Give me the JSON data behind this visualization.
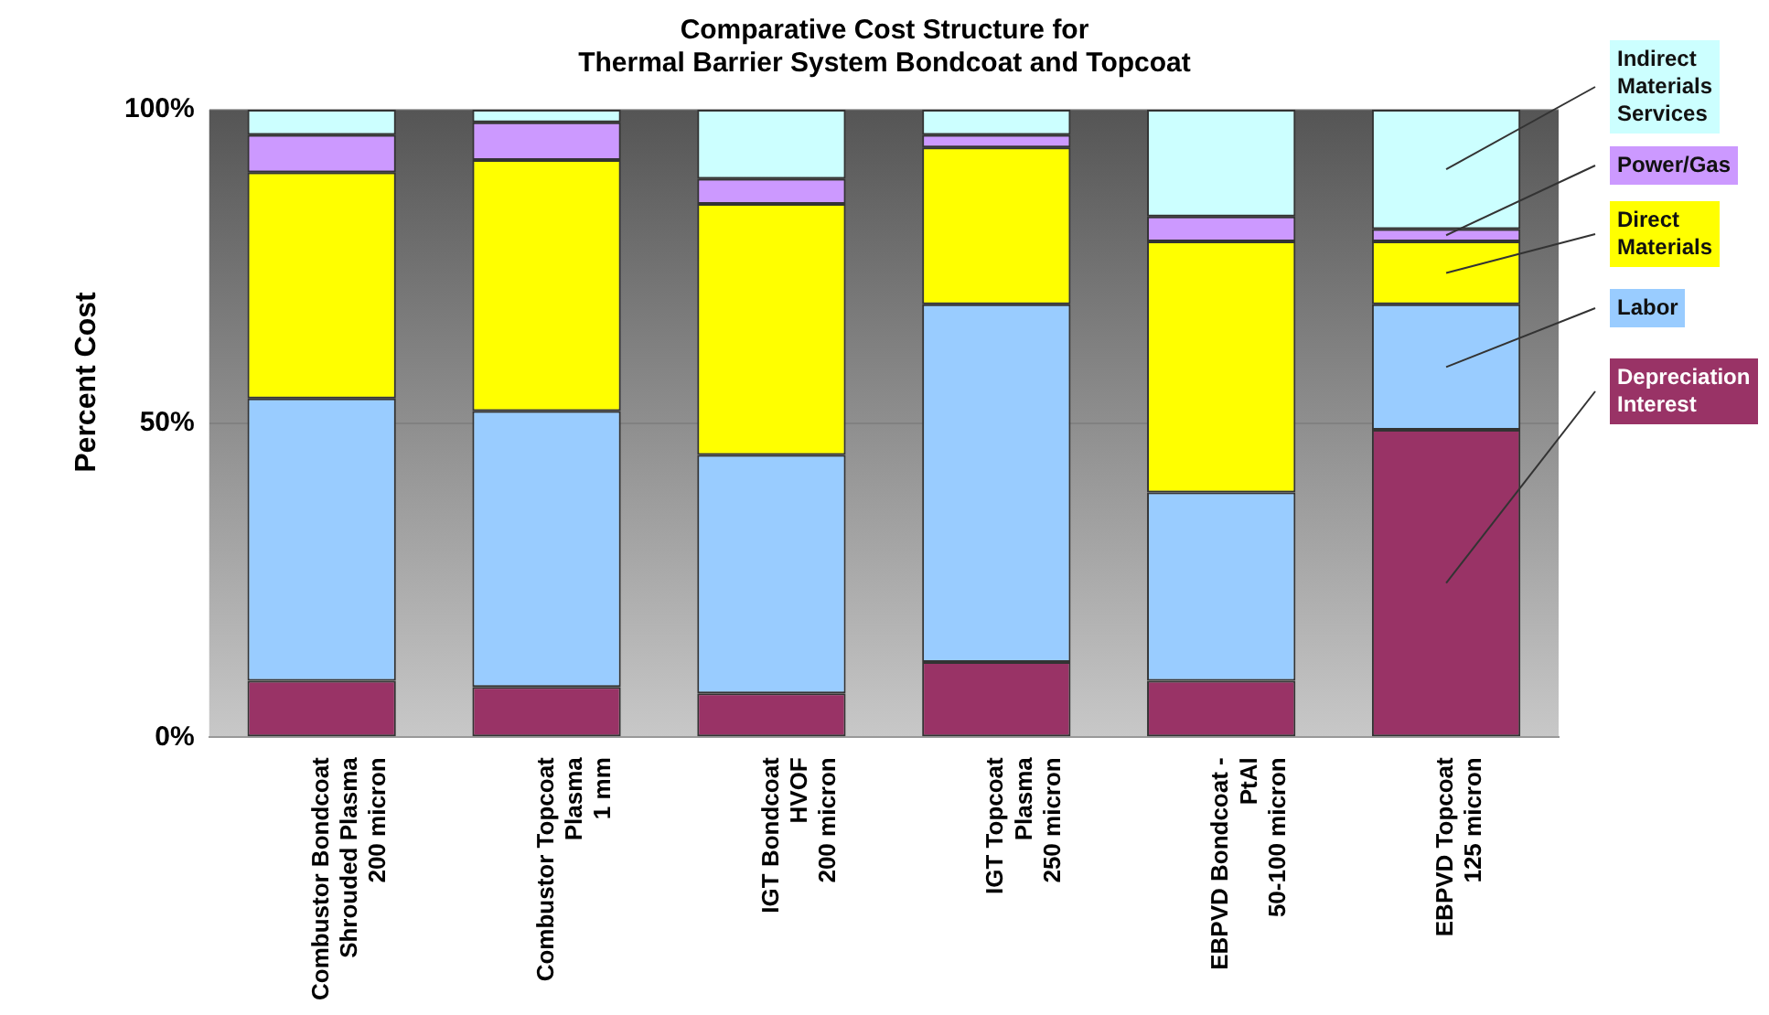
{
  "chart_data": {
    "type": "bar",
    "stacked": true,
    "title": "Comparative Cost Structure for\nThermal Barrier System Bondcoat and Topcoat",
    "ylabel": "Percent Cost",
    "categories": [
      "Combustor Bondcoat\nShrouded Plasma\n200 micron",
      "Combustor Topcoat\nPlasma\n1 mm",
      "IGT Bondcoat\nHVOF\n200 micron",
      "IGT Topcoat\nPlasma\n250 micron",
      "EBPVD Bondcoat -\nPtAl\n50-100 micron",
      "EBPVD Topcoat\n125 micron"
    ],
    "series": [
      {
        "name": "Depreciation\nInterest",
        "color": "#993366",
        "values": [
          9,
          8,
          7,
          12,
          9,
          49
        ]
      },
      {
        "name": "Labor",
        "color": "#99ccff",
        "values": [
          45,
          44,
          38,
          57,
          30,
          20
        ]
      },
      {
        "name": "Direct\nMaterials",
        "color": "#ffff00",
        "values": [
          36,
          40,
          40,
          25,
          40,
          10
        ]
      },
      {
        "name": "Power/Gas",
        "color": "#cc99ff",
        "values": [
          6,
          6,
          4,
          2,
          4,
          2
        ]
      },
      {
        "name": "Indirect\nMaterials\nServices",
        "color": "#ccffff",
        "values": [
          4,
          2,
          11,
          4,
          17,
          19
        ]
      }
    ],
    "ylim": [
      0,
      100
    ],
    "yticks": [
      {
        "value": 0,
        "label": "0%"
      },
      {
        "value": 50,
        "label": "50%"
      },
      {
        "value": 100,
        "label": "100%"
      }
    ],
    "grid": "y",
    "legend": "right"
  }
}
